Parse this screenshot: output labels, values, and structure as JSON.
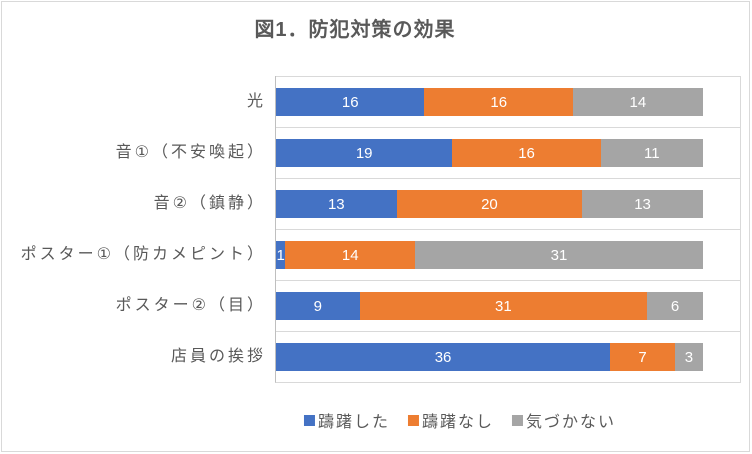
{
  "chart_data": {
    "type": "bar",
    "orientation": "horizontal",
    "stacked": true,
    "title": "図1．防犯対策の効果",
    "categories": [
      "光",
      "音①（不安喚起）",
      "音②（鎮静）",
      "ポスター①（防カメピント）",
      "ポスター②（目）",
      "店員の挨拶"
    ],
    "series": [
      {
        "name": "躊躇した",
        "color": "#4472C4",
        "values": [
          16,
          19,
          13,
          1,
          9,
          36
        ]
      },
      {
        "name": "躊躇なし",
        "color": "#ED7D31",
        "values": [
          16,
          16,
          20,
          14,
          31,
          7
        ]
      },
      {
        "name": "気づかない",
        "color": "#A5A5A5",
        "values": [
          14,
          11,
          13,
          31,
          6,
          3
        ]
      }
    ],
    "xlim": [
      0,
      50
    ],
    "grid": "category-boundary horizontal lines only, no value tick labels",
    "legend_position": "bottom-center",
    "data_labels": "inside center, white"
  },
  "colors": {
    "axis_line": "#BFBFBF",
    "gridline": "#D9D9D9",
    "chart_border": "#D9D9D9",
    "text": "#595959",
    "data_label_text": "#FFFFFF",
    "background": "#FFFFFF"
  }
}
